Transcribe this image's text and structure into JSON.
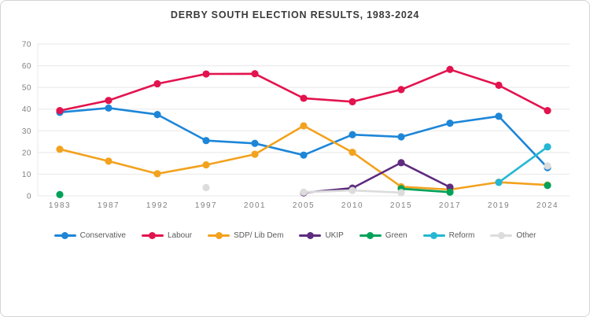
{
  "title": "DERBY SOUTH ELECTION RESULTS, 1983-2024",
  "chart_data": {
    "type": "line",
    "title": "DERBY SOUTH ELECTION RESULTS, 1983-2024",
    "categories": [
      "1983",
      "1987",
      "1992",
      "1997",
      "2001",
      "2005",
      "2010",
      "2015",
      "2017",
      "2019",
      "2024"
    ],
    "y_ticks": [
      0,
      10,
      20,
      30,
      40,
      50,
      60,
      70
    ],
    "ylim": [
      0,
      70
    ],
    "grid": true,
    "legend_position": "bottom",
    "axis_label_color": "#808080",
    "grid_color": "#e8e8e8",
    "series": [
      {
        "name": "Conservative",
        "color": "#1d86d8",
        "values": [
          38.5,
          40.5,
          37.5,
          25.5,
          24.2,
          18.8,
          28.2,
          27.2,
          33.5,
          36.7,
          13.0
        ]
      },
      {
        "name": "Labour",
        "color": "#e2134e",
        "values": [
          39.3,
          44.0,
          51.7,
          56.2,
          56.3,
          45.0,
          43.4,
          49.0,
          58.3,
          51.0,
          39.3
        ]
      },
      {
        "name": "SDP/ Lib Dem",
        "color": "#f2a21e",
        "values": [
          21.5,
          16.0,
          10.2,
          14.3,
          19.2,
          32.3,
          20.1,
          4.2,
          2.9,
          6.3,
          5.0
        ]
      },
      {
        "name": "UKIP",
        "color": "#5e2b7e",
        "values": [
          null,
          null,
          null,
          null,
          null,
          1.4,
          3.6,
          15.3,
          4.0,
          null,
          null
        ]
      },
      {
        "name": "Green",
        "color": "#00a259",
        "values": [
          0.6,
          null,
          null,
          null,
          null,
          null,
          null,
          3.3,
          1.7,
          null,
          4.8
        ]
      },
      {
        "name": "Reform",
        "color": "#25b7d3",
        "values": [
          null,
          null,
          null,
          null,
          null,
          null,
          null,
          null,
          null,
          6.2,
          22.6
        ]
      },
      {
        "name": "Other",
        "color": "#dcdcdc",
        "values": [
          null,
          null,
          null,
          3.8,
          null,
          1.7,
          2.5,
          1.5,
          null,
          null,
          13.8
        ]
      }
    ]
  }
}
